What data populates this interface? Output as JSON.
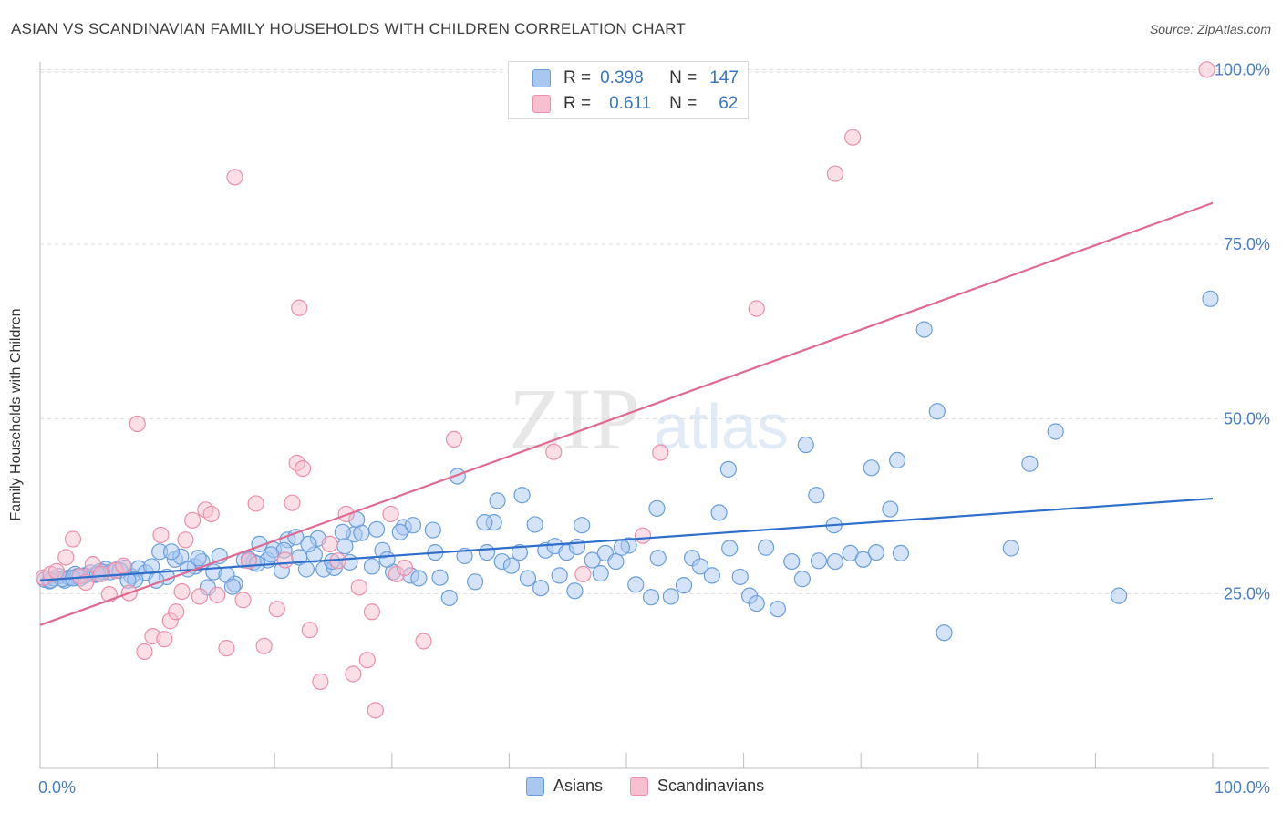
{
  "header": {
    "title": "ASIAN VS SCANDINAVIAN FAMILY HOUSEHOLDS WITH CHILDREN CORRELATION CHART",
    "source": "Source: ZipAtlas.com"
  },
  "watermark": {
    "zip": "ZIP",
    "atlas": "atlas"
  },
  "legend": {
    "rows": [
      {
        "r_label": "R =",
        "r_value": "0.398",
        "n_label": "N =",
        "n_value": "147"
      },
      {
        "r_label": "R =",
        "r_value": "0.611",
        "n_label": "N =",
        "n_value": "62"
      }
    ]
  },
  "bottom_legend": {
    "asians": "Asians",
    "scandinavians": "Scandinavians"
  },
  "colors": {
    "asians_fill": "#a9c8ef",
    "asians_stroke": "#6a9fdc",
    "asians_line": "#2f6fcb",
    "scand_fill": "#f7bfd0",
    "scand_stroke": "#ec8fab",
    "scand_line": "#e06a92",
    "tick_text": "#4a7fc8",
    "grid": "#dedede"
  },
  "chart_data": {
    "type": "scatter",
    "title": "ASIAN VS SCANDINAVIAN FAMILY HOUSEHOLDS WITH CHILDREN CORRELATION CHART",
    "xlabel": "",
    "ylabel": "Family Households with Children",
    "xlim": [
      0,
      100
    ],
    "ylim": [
      0,
      102
    ],
    "x_tick_labels": [
      "0.0%",
      "100.0%"
    ],
    "y_ticks": [
      25,
      50,
      75,
      100
    ],
    "y_tick_labels": [
      "25.0%",
      "50.0%",
      "75.0%",
      "100.0%"
    ],
    "grid": true,
    "legend_position": "top-center",
    "series": [
      {
        "name": "Asians",
        "R": 0.398,
        "N": 147,
        "trend": {
          "x": [
            0,
            100
          ],
          "y": [
            26.9,
            38.6
          ]
        },
        "points": [
          [
            0.4,
            27
          ],
          [
            0.8,
            26.8
          ],
          [
            1.2,
            27.2
          ],
          [
            1.6,
            27.5
          ],
          [
            2.1,
            26.9
          ],
          [
            2.5,
            27.3
          ],
          [
            3,
            27.8
          ],
          [
            3.4,
            27.2
          ],
          [
            3.8,
            27.6
          ],
          [
            4.3,
            28
          ],
          [
            4.7,
            27.7
          ],
          [
            5.1,
            28.2
          ],
          [
            5.6,
            28.5
          ],
          [
            6,
            28.1
          ],
          [
            6.5,
            28.4
          ],
          [
            7.2,
            28.7
          ],
          [
            7.8,
            27.5
          ],
          [
            8.4,
            28.6
          ],
          [
            9,
            28
          ],
          [
            9.5,
            28.9
          ],
          [
            10.2,
            31
          ],
          [
            10.8,
            27.4
          ],
          [
            11.5,
            29.9
          ],
          [
            12,
            30.3
          ],
          [
            13.2,
            28.9
          ],
          [
            13.8,
            29.6
          ],
          [
            14.3,
            25.9
          ],
          [
            14.8,
            28.1
          ],
          [
            15.3,
            30.4
          ],
          [
            16.6,
            26.4
          ],
          [
            17.4,
            29.8
          ],
          [
            18.2,
            29.5
          ],
          [
            18.7,
            32.1
          ],
          [
            19.4,
            29.8
          ],
          [
            19.9,
            31.3
          ],
          [
            20.6,
            28.3
          ],
          [
            21.1,
            32.7
          ],
          [
            22.1,
            30.2
          ],
          [
            22.7,
            28.5
          ],
          [
            23.4,
            30.6
          ],
          [
            24.2,
            28.5
          ],
          [
            25.1,
            28.7
          ],
          [
            26,
            31.8
          ],
          [
            26.8,
            33.5
          ],
          [
            27.4,
            33.7
          ],
          [
            28.3,
            28.9
          ],
          [
            29.2,
            31.2
          ],
          [
            30.1,
            28.1
          ],
          [
            31,
            34.5
          ],
          [
            31.6,
            27.6
          ],
          [
            32.3,
            27.2
          ],
          [
            33.7,
            30.9
          ],
          [
            34.1,
            27.3
          ],
          [
            34.9,
            24.4
          ],
          [
            36.2,
            30.4
          ],
          [
            37.1,
            26.7
          ],
          [
            38.1,
            30.9
          ],
          [
            38.7,
            35.2
          ],
          [
            39.4,
            29.6
          ],
          [
            40.2,
            29
          ],
          [
            40.9,
            30.9
          ],
          [
            41.6,
            27.2
          ],
          [
            42.7,
            25.8
          ],
          [
            43.1,
            31.2
          ],
          [
            43.9,
            31.8
          ],
          [
            44.9,
            30.9
          ],
          [
            45.6,
            25.4
          ],
          [
            46.2,
            34.8
          ],
          [
            47.1,
            29.8
          ],
          [
            47.8,
            27.9
          ],
          [
            48.2,
            30.8
          ],
          [
            49.1,
            29.6
          ],
          [
            50.2,
            31.9
          ],
          [
            50.8,
            26.3
          ],
          [
            52.1,
            24.5
          ],
          [
            52.7,
            30.1
          ],
          [
            53.8,
            24.6
          ],
          [
            54.9,
            26.2
          ],
          [
            55.6,
            30.1
          ],
          [
            56.3,
            28.9
          ],
          [
            57.3,
            27.6
          ],
          [
            58.8,
            31.5
          ],
          [
            59.7,
            27.4
          ],
          [
            60.5,
            24.7
          ],
          [
            61.1,
            23.6
          ],
          [
            61.9,
            31.6
          ],
          [
            62.9,
            22.8
          ],
          [
            64.1,
            29.6
          ],
          [
            65,
            27.1
          ],
          [
            66.4,
            29.7
          ],
          [
            67.8,
            29.6
          ],
          [
            69.1,
            30.8
          ],
          [
            70.2,
            29.9
          ],
          [
            71.3,
            30.9
          ],
          [
            72.5,
            37.1
          ],
          [
            73.4,
            30.8
          ],
          [
            77.1,
            19.4
          ],
          [
            82.8,
            31.5
          ],
          [
            84.4,
            43.6
          ],
          [
            86.6,
            48.2
          ],
          [
            92,
            24.7
          ],
          [
            76.5,
            51.1
          ],
          [
            73.1,
            44.1
          ],
          [
            70.9,
            43
          ],
          [
            66.2,
            39.1
          ],
          [
            65.3,
            46.3
          ],
          [
            58.7,
            42.8
          ],
          [
            57.9,
            36.6
          ],
          [
            52.6,
            37.2
          ],
          [
            41.1,
            39.1
          ],
          [
            39,
            38.3
          ],
          [
            35.6,
            41.8
          ],
          [
            31.8,
            34.8
          ],
          [
            28.7,
            34.2
          ],
          [
            27,
            35.6
          ],
          [
            25.8,
            33.8
          ],
          [
            23.7,
            32.9
          ],
          [
            20.8,
            31.2
          ],
          [
            17.8,
            29.9
          ],
          [
            15.9,
            27.7
          ],
          [
            12.6,
            28.5
          ],
          [
            11.2,
            31
          ],
          [
            9.9,
            26.9
          ],
          [
            8.1,
            27
          ],
          [
            6.8,
            28.3
          ],
          [
            5.3,
            28.1
          ],
          [
            3.2,
            27.5
          ],
          [
            1.9,
            27.1
          ],
          [
            0.9,
            26.9
          ],
          [
            49.6,
            31.6
          ],
          [
            45.8,
            31.7
          ],
          [
            44.3,
            27.6
          ],
          [
            42.2,
            34.9
          ],
          [
            37.9,
            35.2
          ],
          [
            33.5,
            34.1
          ],
          [
            30.7,
            33.8
          ],
          [
            29.6,
            29.9
          ],
          [
            26.4,
            29.5
          ],
          [
            24.9,
            29.6
          ],
          [
            22.9,
            32.1
          ],
          [
            21.8,
            33.1
          ],
          [
            19.7,
            30.6
          ],
          [
            18.5,
            29.3
          ],
          [
            16.4,
            26
          ],
          [
            13.5,
            30.1
          ],
          [
            7.5,
            26.9
          ],
          [
            4.9,
            27.8
          ],
          [
            2.8,
            27.2
          ],
          [
            99.8,
            67.2
          ],
          [
            75.4,
            62.8
          ],
          [
            67.7,
            34.8
          ]
        ]
      },
      {
        "name": "Scandinavians",
        "R": 0.611,
        "N": 62,
        "trend": {
          "x": [
            0,
            100
          ],
          "y": [
            20.5,
            80.9
          ]
        },
        "points": [
          [
            0.3,
            27.3
          ],
          [
            0.9,
            27.8
          ],
          [
            1.4,
            28.2
          ],
          [
            2.2,
            30.2
          ],
          [
            2.8,
            32.8
          ],
          [
            3.4,
            27.5
          ],
          [
            3.9,
            26.6
          ],
          [
            4.5,
            29.2
          ],
          [
            5.2,
            27.8
          ],
          [
            5.9,
            24.9
          ],
          [
            6.4,
            28.3
          ],
          [
            7.1,
            29
          ],
          [
            7.6,
            25.1
          ],
          [
            8.3,
            49.3
          ],
          [
            8.9,
            16.7
          ],
          [
            9.6,
            18.9
          ],
          [
            10.3,
            33.4
          ],
          [
            10.6,
            18.5
          ],
          [
            11.1,
            21.1
          ],
          [
            11.6,
            22.4
          ],
          [
            12.1,
            25.3
          ],
          [
            12.4,
            32.7
          ],
          [
            13,
            35.5
          ],
          [
            13.6,
            24.6
          ],
          [
            14.1,
            37
          ],
          [
            14.6,
            36.4
          ],
          [
            15.1,
            24.8
          ],
          [
            15.9,
            17.2
          ],
          [
            16.6,
            84.6
          ],
          [
            17.3,
            24.1
          ],
          [
            17.8,
            29.7
          ],
          [
            18.4,
            37.9
          ],
          [
            19.1,
            17.5
          ],
          [
            20.2,
            22.8
          ],
          [
            20.9,
            29.8
          ],
          [
            21.5,
            38
          ],
          [
            21.9,
            43.7
          ],
          [
            22.4,
            42.9
          ],
          [
            23,
            19.8
          ],
          [
            23.9,
            12.4
          ],
          [
            24.7,
            32.1
          ],
          [
            25.4,
            29.7
          ],
          [
            26.1,
            36.4
          ],
          [
            26.7,
            13.5
          ],
          [
            27.2,
            25.9
          ],
          [
            27.9,
            15.5
          ],
          [
            28.3,
            22.4
          ],
          [
            28.6,
            8.3
          ],
          [
            29.9,
            36.4
          ],
          [
            30.4,
            27.8
          ],
          [
            31.1,
            28.7
          ],
          [
            32.7,
            18.2
          ],
          [
            35.3,
            47.1
          ],
          [
            43.8,
            45.3
          ],
          [
            46.3,
            27.8
          ],
          [
            51.4,
            33.3
          ],
          [
            52.9,
            45.2
          ],
          [
            61.1,
            65.8
          ],
          [
            67.8,
            85.1
          ],
          [
            69.3,
            90.3
          ],
          [
            99.5,
            100
          ],
          [
            22.1,
            65.9
          ]
        ]
      }
    ]
  }
}
